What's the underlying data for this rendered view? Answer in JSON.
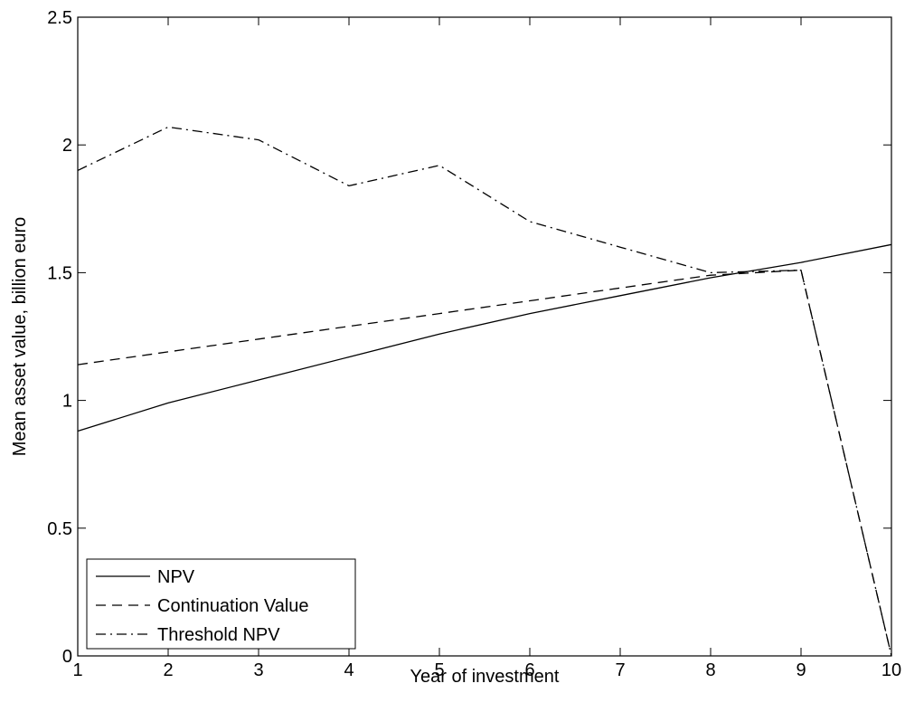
{
  "chart_data": {
    "type": "line",
    "xlabel": "Year of investment",
    "ylabel": "Mean asset value, billion euro",
    "xlim": [
      1,
      10
    ],
    "ylim": [
      0,
      2.5
    ],
    "xticks": [
      "1",
      "2",
      "3",
      "4",
      "5",
      "6",
      "7",
      "8",
      "9",
      "10"
    ],
    "yticks": [
      "0",
      "0.5",
      "1",
      "1.5",
      "2",
      "2.5"
    ],
    "grid": false,
    "legend_position": "bottom-left",
    "series": [
      {
        "name": "NPV",
        "style": "solid",
        "color": "#000000",
        "x": [
          1,
          2,
          3,
          4,
          5,
          6,
          7,
          8,
          9,
          10
        ],
        "y": [
          0.88,
          0.99,
          1.08,
          1.17,
          1.26,
          1.34,
          1.41,
          1.48,
          1.54,
          1.61
        ]
      },
      {
        "name": "Continuation Value",
        "style": "dashed",
        "color": "#000000",
        "x": [
          1,
          2,
          3,
          4,
          5,
          6,
          7,
          8,
          9,
          10
        ],
        "y": [
          1.14,
          1.19,
          1.24,
          1.29,
          1.34,
          1.39,
          1.44,
          1.49,
          1.51,
          0.0
        ]
      },
      {
        "name": "Threshold NPV",
        "style": "dashdot",
        "color": "#000000",
        "x": [
          1,
          2,
          3,
          4,
          5,
          6,
          7,
          8,
          9,
          10
        ],
        "y": [
          1.9,
          2.07,
          2.02,
          1.84,
          1.92,
          1.7,
          1.6,
          1.5,
          1.51,
          0.0
        ]
      }
    ]
  }
}
